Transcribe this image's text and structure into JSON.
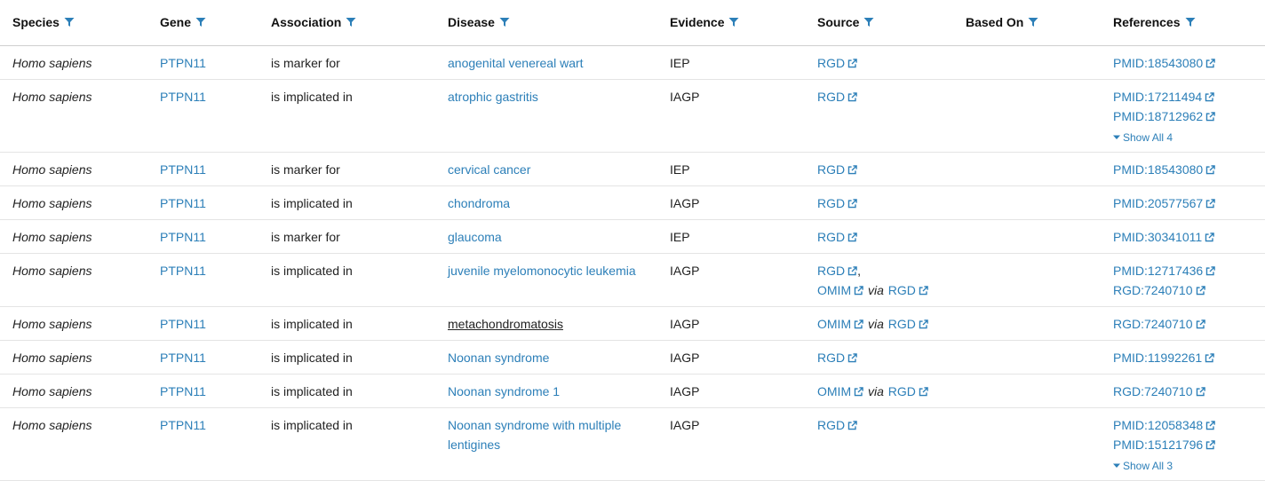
{
  "columns": [
    "Species",
    "Gene",
    "Association",
    "Disease",
    "Evidence",
    "Source",
    "Based On",
    "References"
  ],
  "via_label": "via",
  "colors": {
    "link": "#2c7fb8",
    "text": "#222222",
    "header_border": "#cfcfcf",
    "row_border": "#e4e4e4"
  },
  "icons": {
    "filter": "filter-icon",
    "external": "external-link-icon",
    "caret": "caret-down-icon"
  },
  "rows": [
    {
      "species": "Homo sapiens",
      "gene": "PTPN11",
      "association": "is marker for",
      "disease": "anogenital venereal wart",
      "evidence": "IEP",
      "source": [
        {
          "parts": [
            {
              "text": "RGD",
              "ext": true
            }
          ]
        }
      ],
      "references": [
        "PMID:18543080"
      ]
    },
    {
      "species": "Homo sapiens",
      "gene": "PTPN11",
      "association": "is implicated in",
      "disease": "atrophic gastritis",
      "evidence": "IAGP",
      "source": [
        {
          "parts": [
            {
              "text": "RGD",
              "ext": true
            }
          ]
        }
      ],
      "references": [
        "PMID:17211494",
        "PMID:18712962"
      ],
      "show_all": "Show All 4"
    },
    {
      "species": "Homo sapiens",
      "gene": "PTPN11",
      "association": "is marker for",
      "disease": "cervical cancer",
      "evidence": "IEP",
      "source": [
        {
          "parts": [
            {
              "text": "RGD",
              "ext": true
            }
          ]
        }
      ],
      "references": [
        "PMID:18543080"
      ]
    },
    {
      "species": "Homo sapiens",
      "gene": "PTPN11",
      "association": "is implicated in",
      "disease": "chondroma",
      "evidence": "IAGP",
      "source": [
        {
          "parts": [
            {
              "text": "RGD",
              "ext": true
            }
          ]
        }
      ],
      "references": [
        "PMID:20577567"
      ]
    },
    {
      "species": "Homo sapiens",
      "gene": "PTPN11",
      "association": "is marker for",
      "disease": "glaucoma",
      "evidence": "IEP",
      "source": [
        {
          "parts": [
            {
              "text": "RGD",
              "ext": true
            }
          ]
        }
      ],
      "references": [
        "PMID:30341011"
      ]
    },
    {
      "species": "Homo sapiens",
      "gene": "PTPN11",
      "association": "is implicated in",
      "disease": "juvenile myelomonocytic leukemia",
      "evidence": "IAGP",
      "source": [
        {
          "parts": [
            {
              "text": "RGD",
              "ext": true,
              "suffix": ","
            }
          ]
        },
        {
          "parts": [
            {
              "text": "OMIM",
              "ext": true
            },
            {
              "via": true
            },
            {
              "text": "RGD",
              "ext": true
            }
          ]
        }
      ],
      "references": [
        "PMID:12717436",
        "RGD:7240710"
      ]
    },
    {
      "species": "Homo sapiens",
      "gene": "PTPN11",
      "association": "is implicated in",
      "disease": "metachondromatosis",
      "disease_hover": true,
      "evidence": "IAGP",
      "source": [
        {
          "parts": [
            {
              "text": "OMIM",
              "ext": true
            },
            {
              "via": true
            },
            {
              "text": "RGD",
              "ext": true
            }
          ]
        }
      ],
      "references": [
        "RGD:7240710"
      ]
    },
    {
      "species": "Homo sapiens",
      "gene": "PTPN11",
      "association": "is implicated in",
      "disease": "Noonan syndrome",
      "evidence": "IAGP",
      "source": [
        {
          "parts": [
            {
              "text": "RGD",
              "ext": true
            }
          ]
        }
      ],
      "references": [
        "PMID:11992261"
      ]
    },
    {
      "species": "Homo sapiens",
      "gene": "PTPN11",
      "association": "is implicated in",
      "disease": "Noonan syndrome 1",
      "evidence": "IAGP",
      "source": [
        {
          "parts": [
            {
              "text": "OMIM",
              "ext": true
            },
            {
              "via": true
            },
            {
              "text": "RGD",
              "ext": true
            }
          ]
        }
      ],
      "references": [
        "RGD:7240710"
      ]
    },
    {
      "species": "Homo sapiens",
      "gene": "PTPN11",
      "association": "is implicated in",
      "disease": "Noonan syndrome with multiple lentigines",
      "evidence": "IAGP",
      "source": [
        {
          "parts": [
            {
              "text": "RGD",
              "ext": true
            }
          ]
        }
      ],
      "references": [
        "PMID:12058348",
        "PMID:15121796"
      ],
      "show_all": "Show All 3"
    }
  ]
}
